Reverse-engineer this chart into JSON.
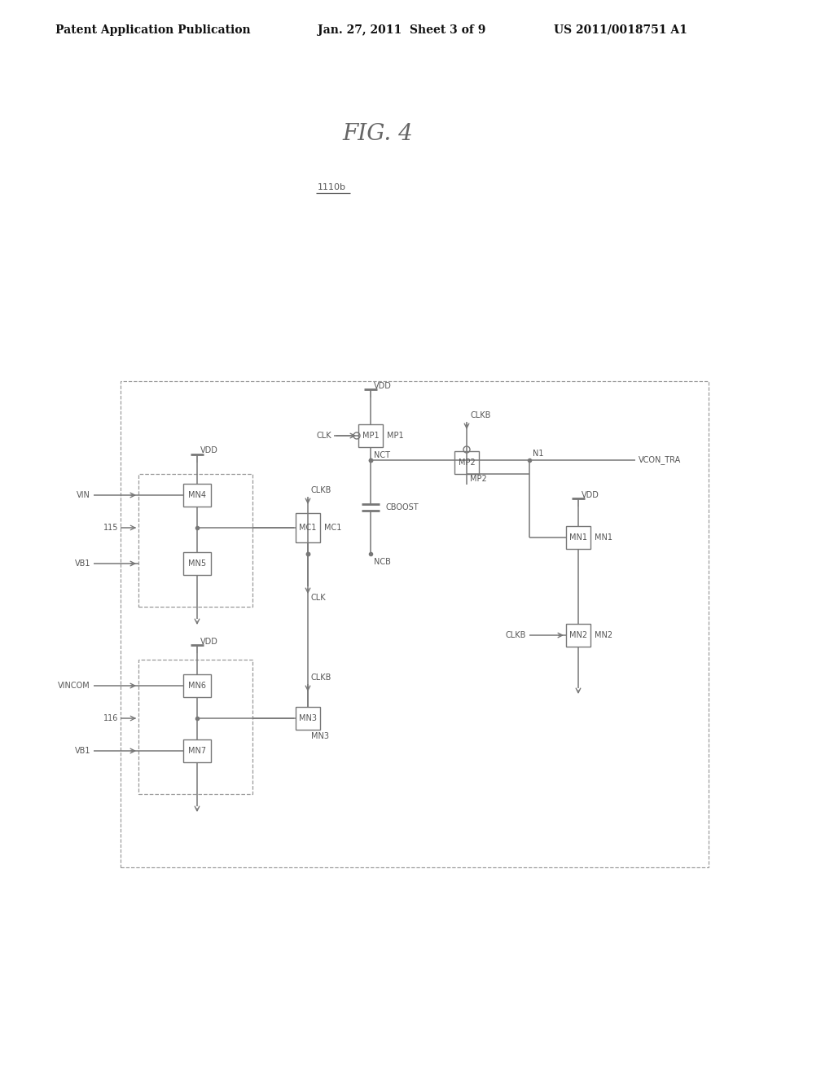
{
  "header_left": "Patent Application Publication",
  "header_mid": "Jan. 27, 2011  Sheet 3 of 9",
  "header_right": "US 2011/0018751 A1",
  "fig_title": "FIG. 4",
  "block_label": "1110b",
  "bg_color": "#ffffff",
  "line_color": "#777777",
  "text_color": "#555555",
  "dash_color": "#999999",
  "header_color": "#111111"
}
